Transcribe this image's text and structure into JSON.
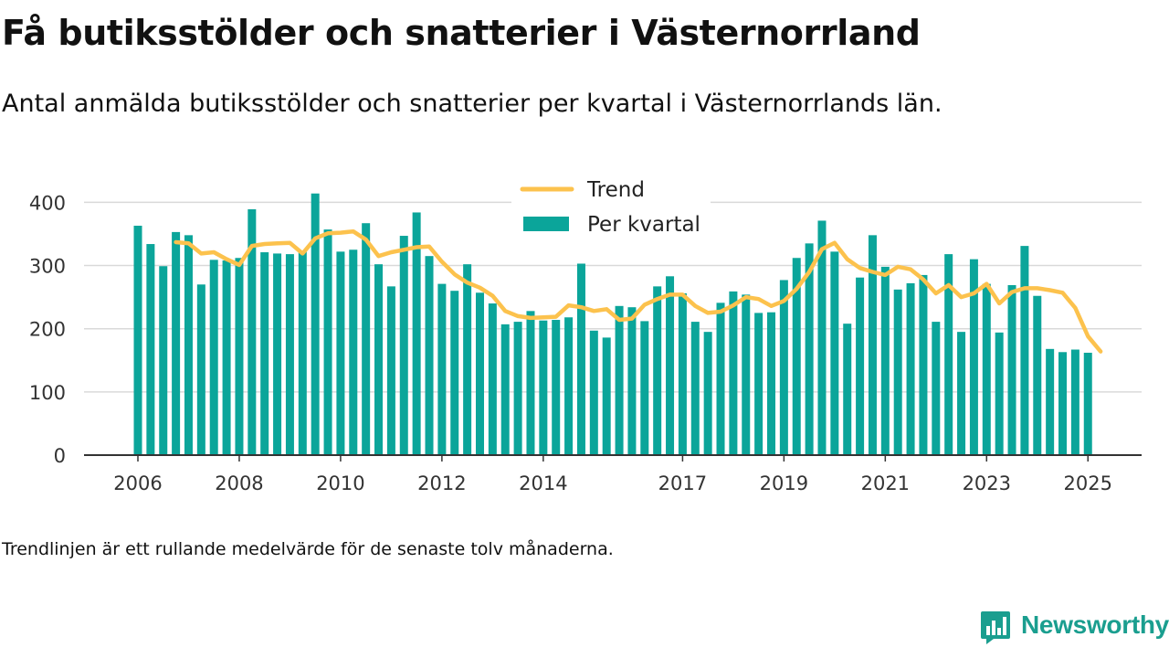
{
  "title": "Få butiksstölder och snatterier i Västernorrland",
  "subtitle": "Antal anmälda butiksstölder och snatterier per kvartal i Västernorrlands län.",
  "note": "Trendlinjen är ett rullande medelvärde för de senaste tolv månaderna.",
  "brand": {
    "name": "Newsworthy",
    "icon": "newsworthy-chart-icon"
  },
  "colors": {
    "bars": "#0ba59a",
    "trend": "#fcc24d",
    "grid": "#d9d9d9",
    "axis": "#333333"
  },
  "chart_data": {
    "type": "bar",
    "grid": true,
    "legend_position": "top-center",
    "ylim": [
      0,
      420
    ],
    "yticks": [
      0,
      100,
      200,
      300,
      400
    ],
    "xticks": [
      "2006",
      "2008",
      "2010",
      "2012",
      "2014",
      "2017",
      "2019",
      "2021",
      "2023",
      "2025"
    ],
    "xtick_index": [
      0,
      8,
      16,
      24,
      32,
      43,
      51,
      59,
      67,
      75
    ],
    "series": [
      {
        "name": "Per kvartal",
        "type": "bar",
        "values": [
          363,
          334,
          299,
          353,
          348,
          270,
          309,
          308,
          312,
          389,
          321,
          319,
          318,
          322,
          414,
          357,
          322,
          325,
          367,
          302,
          267,
          347,
          384,
          315,
          271,
          260,
          302,
          257,
          240,
          207,
          211,
          228,
          213,
          214,
          218,
          303,
          197,
          186,
          236,
          234,
          212,
          267,
          283,
          256,
          211,
          195,
          241,
          259,
          254,
          225,
          226,
          277,
          312,
          335,
          371,
          322,
          208,
          281,
          348,
          298,
          262,
          272,
          285,
          211,
          318,
          195,
          310,
          271,
          194,
          269,
          331,
          252,
          168,
          163,
          167,
          162
        ]
      },
      {
        "name": "Trend",
        "type": "line",
        "start_index": 3,
        "values": [
          337,
          335,
          319,
          321,
          310,
          301,
          331,
          334,
          335,
          336,
          319,
          343,
          351,
          352,
          354,
          341,
          315,
          321,
          325,
          329,
          330,
          306,
          286,
          273,
          265,
          252,
          228,
          220,
          217,
          218,
          219,
          237,
          234,
          228,
          231,
          214,
          216,
          238,
          247,
          254,
          254,
          236,
          225,
          227,
          237,
          250,
          247,
          236,
          244,
          263,
          290,
          326,
          336,
          310,
          296,
          290,
          285,
          298,
          294,
          278,
          256,
          269,
          250,
          256,
          271,
          240,
          258,
          264,
          264,
          261,
          257,
          233,
          188,
          164
        ]
      }
    ]
  }
}
